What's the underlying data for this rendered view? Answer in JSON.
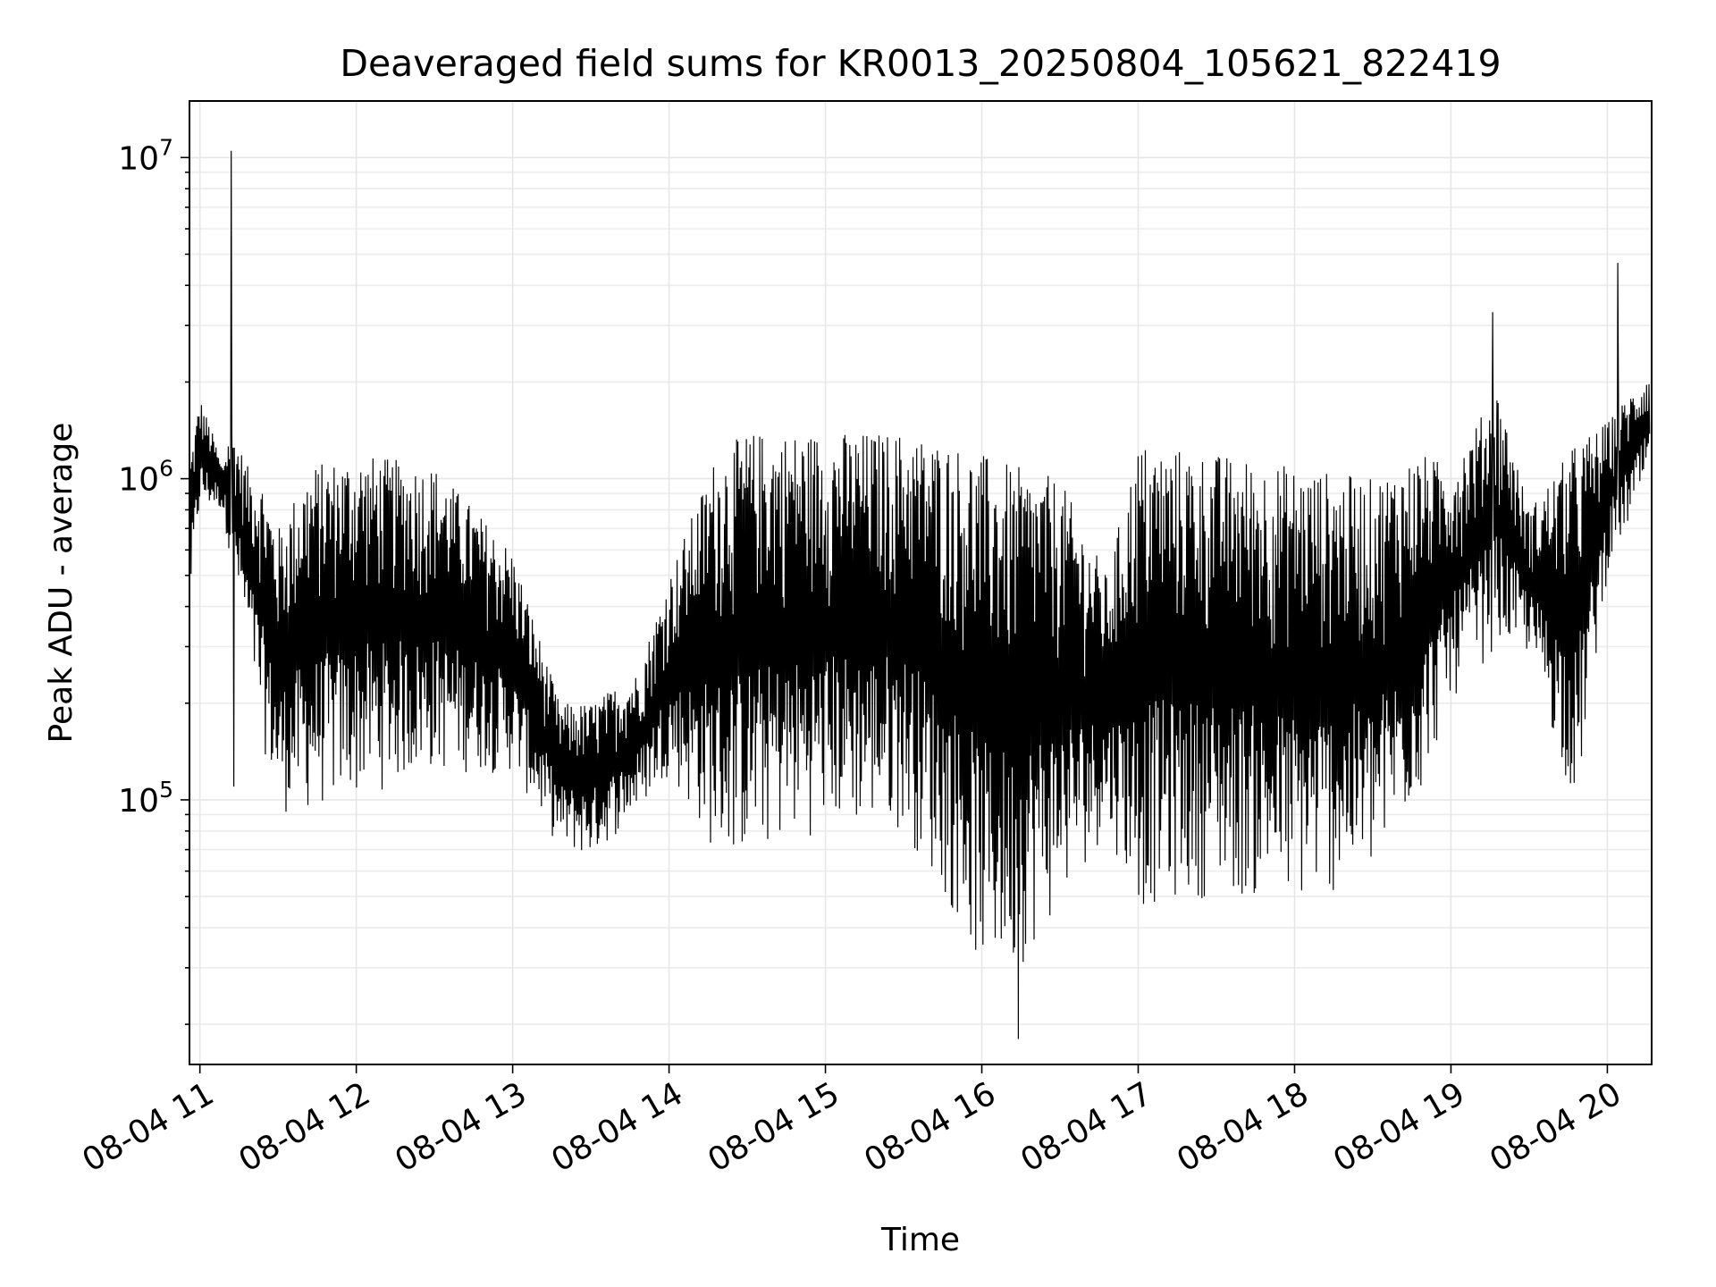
{
  "chart_data": {
    "type": "line",
    "title": "Deaveraged field sums for KR0013_20250804_105621_822419",
    "xlabel": "Time",
    "ylabel": "Peak ADU - average",
    "yscale": "log",
    "ylim": [
      15000,
      15000000
    ],
    "xlim": [
      "08-04 10:56",
      "08-04 20:17"
    ],
    "x_tick_labels": [
      "08-04 11",
      "08-04 12",
      "08-04 13",
      "08-04 14",
      "08-04 15",
      "08-04 16",
      "08-04 17",
      "08-04 18",
      "08-04 19",
      "08-04 20"
    ],
    "y_tick_exponents": [
      "5",
      "6",
      "7"
    ],
    "y_tick_values": [
      100000,
      1000000,
      10000000
    ],
    "grid": true,
    "legend": "none",
    "line_color": "#000000",
    "envelope_time_hours": [
      10.94,
      11.0,
      11.1,
      11.14,
      11.2,
      11.3,
      11.4,
      11.5,
      11.7,
      12.0,
      12.5,
      13.0,
      13.3,
      13.5,
      13.8,
      14.0,
      14.3,
      14.5,
      15.0,
      15.5,
      15.8,
      16.0,
      16.2,
      16.5,
      16.8,
      17.0,
      17.5,
      18.0,
      18.5,
      18.8,
      19.0,
      19.3,
      19.5,
      19.8,
      20.0,
      20.27
    ],
    "envelope_high": [
      1200000,
      1800000,
      1300000,
      1100000,
      1500000,
      1100000,
      1000000,
      700000,
      1100000,
      1200000,
      1100000,
      600000,
      200000,
      200000,
      250000,
      500000,
      1200000,
      1400000,
      1400000,
      1400000,
      1300000,
      1200000,
      1100000,
      1000000,
      500000,
      1300000,
      1200000,
      1100000,
      1000000,
      1200000,
      1100000,
      1900000,
      800000,
      1300000,
      1500000,
      2200000
    ],
    "envelope_low": [
      400000,
      800000,
      800000,
      800000,
      550000,
      300000,
      150000,
      90000,
      90000,
      100000,
      120000,
      120000,
      70000,
      65000,
      90000,
      120000,
      65000,
      65000,
      80000,
      80000,
      45000,
      28000,
      28000,
      45000,
      80000,
      45000,
      50000,
      45000,
      55000,
      100000,
      200000,
      300000,
      280000,
      90000,
      500000,
      1000000
    ],
    "spikes": [
      {
        "time": "08-04 11:12",
        "value": 10500000
      },
      {
        "time": "08-04 19:16",
        "value": 3300000
      },
      {
        "time": "08-04 20:04",
        "value": 4700000
      },
      {
        "time": "08-04 16:14",
        "value": 18000
      },
      {
        "time": "08-04 11:13",
        "value": 110000
      }
    ]
  }
}
